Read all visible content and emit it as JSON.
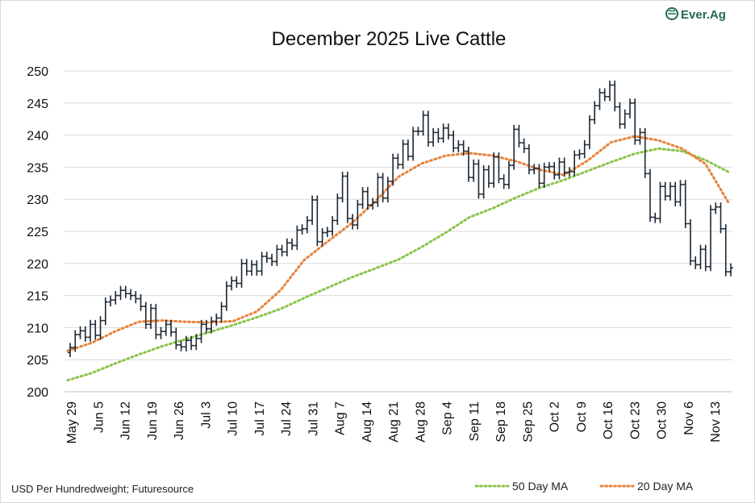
{
  "brand": {
    "name": "Ever.Ag",
    "color": "#1f6b4e"
  },
  "chart_data": {
    "type": "ohlc",
    "title": "December 2025 Live Cattle",
    "ylabel": "",
    "xlabel": "",
    "ylim": [
      200,
      250
    ],
    "yticks": [
      200,
      205,
      210,
      215,
      220,
      225,
      230,
      235,
      240,
      245,
      250
    ],
    "grid": true,
    "source_note": "USD Per Hundredweight; Futuresource",
    "x_tick_labels": [
      "May 29",
      "Jun 5",
      "Jun 12",
      "Jun 19",
      "Jun 26",
      "Jul 3",
      "Jul 10",
      "Jul 17",
      "Jul 24",
      "Jul 31",
      "Aug 7",
      "Aug 14",
      "Aug 21",
      "Aug 28",
      "Sep 4",
      "Sep 11",
      "Sep 18",
      "Sep 25",
      "Oct 2",
      "Oct 9",
      "Oct 16",
      "Oct 23",
      "Oct 30",
      "Nov 6",
      "Nov 13"
    ],
    "legend": {
      "position": "bottom-right",
      "entries": [
        {
          "name": "50 Day MA",
          "color": "#8bc34a",
          "style": "dotted"
        },
        {
          "name": "20 Day MA",
          "color": "#e8823a",
          "style": "dotted"
        }
      ]
    },
    "series": [
      {
        "name": "December 2025 Live Cattle",
        "type": "ohlc",
        "color": "#1c2833",
        "closes": [
          206.9,
          208.9,
          209.5,
          208.5,
          210.5,
          208.8,
          211.1,
          214.0,
          214.3,
          215.0,
          215.8,
          215.3,
          215.0,
          214.5,
          213.3,
          210.5,
          213.0,
          208.9,
          209.4,
          210.5,
          209.3,
          207.3,
          207.0,
          208.0,
          207.2,
          208.3,
          210.5,
          209.8,
          211.0,
          211.5,
          213.3,
          216.5,
          217.3,
          216.9,
          220.0,
          218.8,
          219.8,
          218.8,
          221.1,
          220.8,
          220.3,
          222.2,
          221.8,
          223.2,
          222.8,
          225.2,
          225.4,
          226.7,
          229.9,
          223.4,
          224.8,
          225.0,
          226.7,
          230.2,
          233.6,
          227.0,
          226.0,
          229.2,
          231.2,
          229.1,
          229.5,
          233.4,
          230.2,
          232.8,
          236.4,
          235.4,
          238.6,
          236.7,
          240.6,
          240.6,
          243.1,
          238.9,
          240.4,
          239.5,
          241.1,
          240.0,
          238.0,
          238.5,
          237.5,
          233.4,
          235.5,
          230.8,
          234.6,
          232.5,
          236.6,
          233.2,
          232.3,
          235.3,
          240.9,
          238.8,
          237.9,
          234.6,
          234.8,
          232.5,
          235.0,
          235.1,
          233.8,
          235.8,
          234.2,
          234.3,
          236.9,
          237.1,
          238.5,
          242.4,
          244.6,
          246.6,
          246.0,
          247.8,
          244.4,
          241.7,
          243.3,
          245.0,
          239.2,
          240.4,
          234.0,
          227.2,
          227.0,
          232.0,
          230.5,
          232.0,
          229.6,
          232.3,
          226.2,
          220.4,
          219.8,
          222.2,
          219.5,
          228.4,
          228.8,
          225.4,
          218.7,
          219.3
        ]
      },
      {
        "name": "50 Day MA",
        "type": "line",
        "color": "#8bc34a",
        "values": [
          201.8,
          202.9,
          204.4,
          205.8,
          207.1,
          208.2,
          209.3,
          210.4,
          211.6,
          212.9,
          214.6,
          216.2,
          217.8,
          219.2,
          220.6,
          222.6,
          224.8,
          227.2,
          228.6,
          230.3,
          231.8,
          233.0,
          234.4,
          235.8,
          237.1,
          237.9,
          237.5,
          236.1,
          234.2
        ]
      },
      {
        "name": "20 Day MA",
        "type": "line",
        "color": "#e8823a",
        "values": [
          206.4,
          207.6,
          209.4,
          210.9,
          211.1,
          210.9,
          210.8,
          211.0,
          212.5,
          215.8,
          220.5,
          223.4,
          226.2,
          229.6,
          233.5,
          235.6,
          236.8,
          237.2,
          236.8,
          235.9,
          234.6,
          233.8,
          236.0,
          238.9,
          239.8,
          239.2,
          237.9,
          235.5,
          229.3
        ]
      }
    ]
  }
}
